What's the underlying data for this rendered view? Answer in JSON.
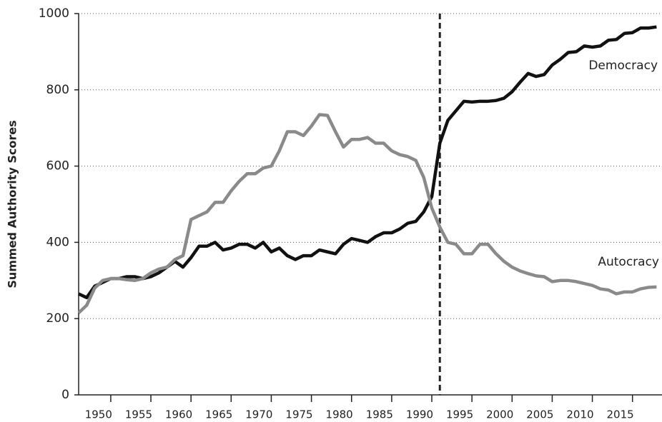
{
  "chart_data": {
    "type": "line",
    "y_label": "Summed Authority Scores",
    "x": [
      1946,
      1947,
      1948,
      1949,
      1950,
      1951,
      1952,
      1953,
      1954,
      1955,
      1956,
      1957,
      1958,
      1959,
      1960,
      1961,
      1962,
      1963,
      1964,
      1965,
      1966,
      1967,
      1968,
      1969,
      1970,
      1971,
      1972,
      1973,
      1974,
      1975,
      1976,
      1977,
      1978,
      1979,
      1980,
      1981,
      1982,
      1983,
      1984,
      1985,
      1986,
      1987,
      1988,
      1989,
      1990,
      1991,
      1992,
      1993,
      1994,
      1995,
      1996,
      1997,
      1998,
      1999,
      2000,
      2001,
      2002,
      2003,
      2004,
      2005,
      2006,
      2007,
      2008,
      2009,
      2010,
      2011,
      2012,
      2013,
      2014,
      2015,
      2016,
      2017,
      2018
    ],
    "series": [
      {
        "name": "Democracy",
        "color": "#111111",
        "values": [
          265,
          255,
          285,
          295,
          305,
          305,
          310,
          310,
          305,
          310,
          320,
          335,
          350,
          335,
          360,
          390,
          390,
          400,
          380,
          385,
          395,
          395,
          385,
          400,
          375,
          385,
          365,
          355,
          365,
          365,
          380,
          375,
          370,
          395,
          410,
          405,
          400,
          415,
          425,
          425,
          435,
          450,
          455,
          480,
          520,
          660,
          720,
          745,
          770,
          768,
          770,
          770,
          772,
          778,
          795,
          820,
          843,
          835,
          840,
          865,
          880,
          898,
          900,
          915,
          912,
          915,
          930,
          932,
          948,
          950,
          962,
          962,
          965
        ]
      },
      {
        "name": "Autocracy",
        "color": "#8a8a8a",
        "values": [
          215,
          235,
          280,
          300,
          305,
          305,
          302,
          300,
          305,
          320,
          330,
          335,
          355,
          365,
          460,
          470,
          480,
          505,
          505,
          535,
          560,
          580,
          580,
          595,
          600,
          640,
          690,
          690,
          680,
          705,
          735,
          733,
          690,
          650,
          670,
          670,
          675,
          660,
          660,
          640,
          630,
          625,
          615,
          570,
          490,
          440,
          400,
          395,
          370,
          370,
          395,
          395,
          370,
          350,
          335,
          325,
          318,
          312,
          310,
          297,
          300,
          300,
          297,
          292,
          287,
          278,
          275,
          265,
          270,
          270,
          278,
          282,
          283
        ]
      }
    ],
    "vline": 1991,
    "xlim": [
      1946,
      2018.5
    ],
    "xticks": [
      1950,
      1955,
      1960,
      1965,
      1970,
      1975,
      1980,
      1985,
      1990,
      1995,
      2000,
      2005,
      2010,
      2015
    ],
    "ylim": [
      0,
      1000
    ],
    "yticks": [
      0,
      200,
      400,
      600,
      800,
      1000
    ],
    "grid": true
  }
}
